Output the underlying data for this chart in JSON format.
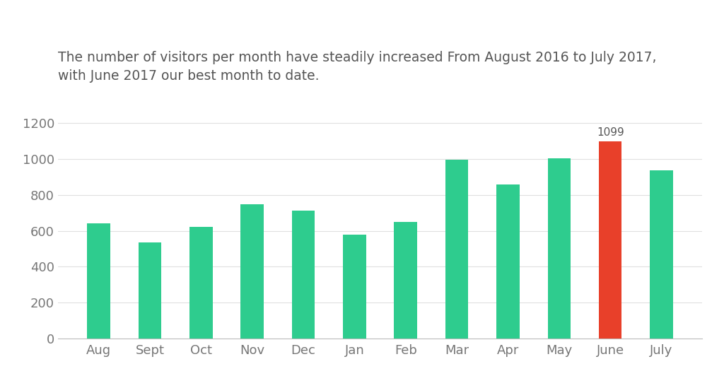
{
  "categories": [
    "Aug",
    "Sept",
    "Oct",
    "Nov",
    "Dec",
    "Jan",
    "Feb",
    "Mar",
    "Apr",
    "May",
    "June",
    "July"
  ],
  "values": [
    640,
    537,
    620,
    748,
    713,
    578,
    648,
    998,
    858,
    1003,
    1099,
    936
  ],
  "bar_colors": [
    "#2ecc8e",
    "#2ecc8e",
    "#2ecc8e",
    "#2ecc8e",
    "#2ecc8e",
    "#2ecc8e",
    "#2ecc8e",
    "#2ecc8e",
    "#2ecc8e",
    "#2ecc8e",
    "#e8402a",
    "#2ecc8e"
  ],
  "title_line1": "The number of visitors per month have steadily increased From August 2016 to July 2017,",
  "title_line2": "with June 2017 our best month to date.",
  "ylim": [
    0,
    1300
  ],
  "yticks": [
    0,
    200,
    400,
    600,
    800,
    1000,
    1200
  ],
  "annotation_index": 10,
  "annotation_text": "1099",
  "background_color": "#ffffff",
  "title_color": "#555555",
  "title_fontsize": 13.5,
  "tick_fontsize": 13,
  "annotation_fontsize": 11,
  "bar_width": 0.45
}
